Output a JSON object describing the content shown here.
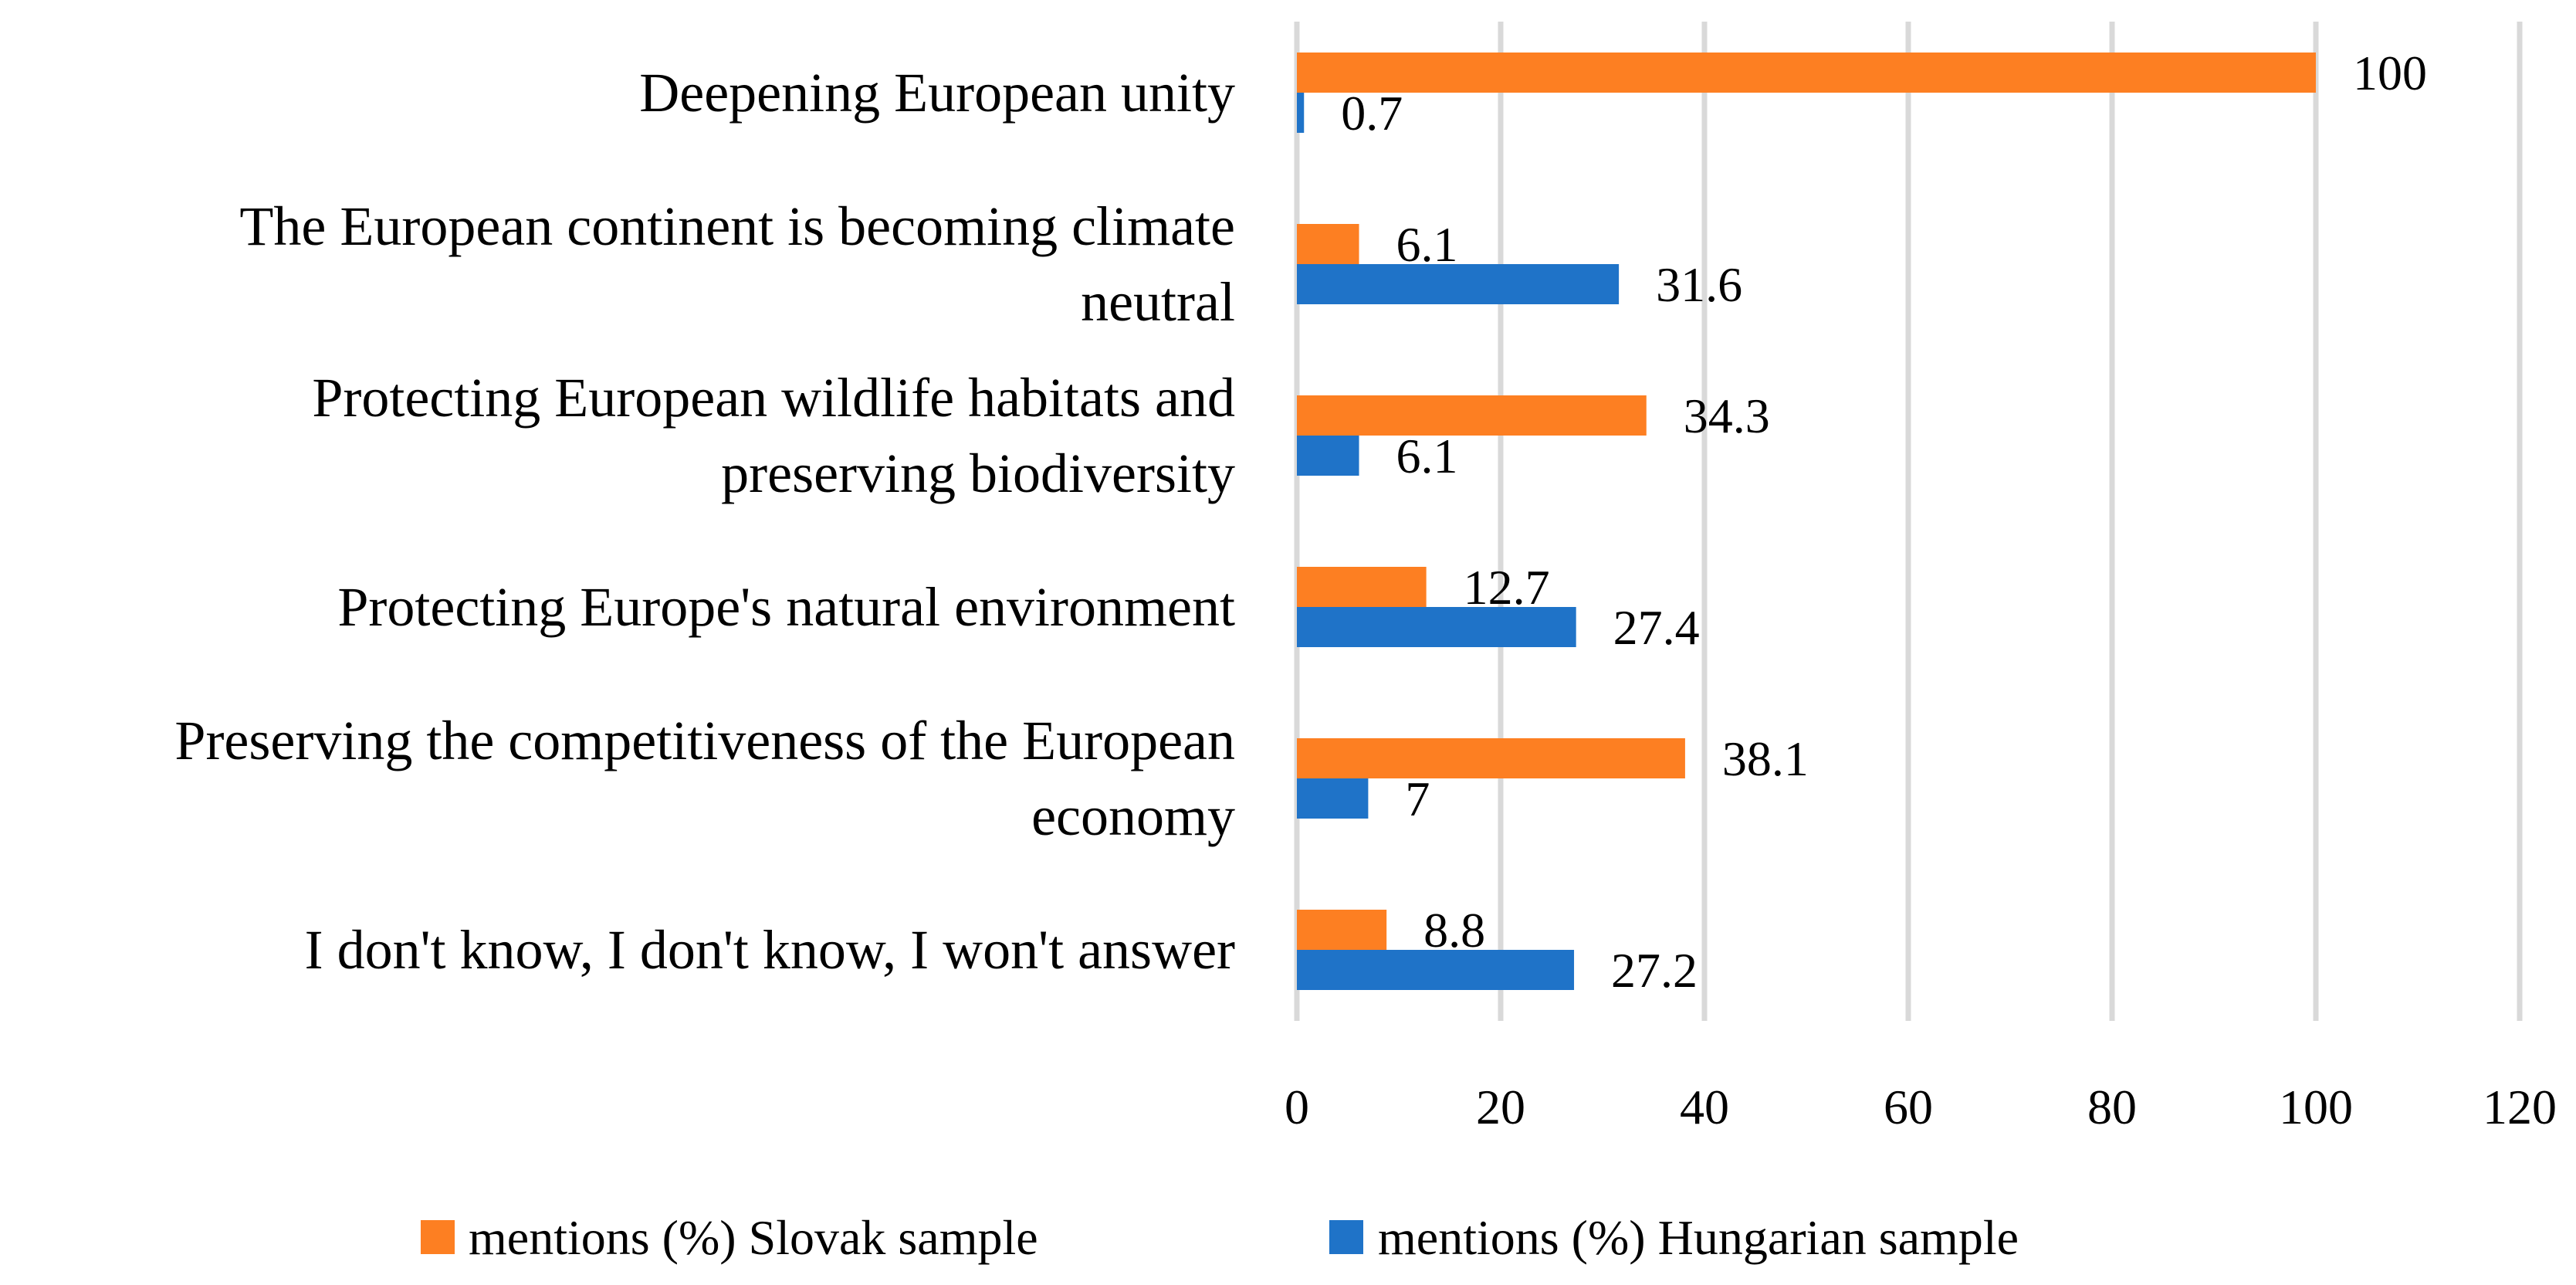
{
  "chart_data": {
    "type": "bar",
    "orientation": "horizontal",
    "title": "",
    "xlabel": "",
    "ylabel": "",
    "xlim": [
      0,
      120
    ],
    "xticks": [
      0,
      20,
      40,
      60,
      80,
      100,
      120
    ],
    "grid": true,
    "legend_position": "bottom",
    "categories": [
      "Deepening European unity",
      "The European continent is becoming climate neutral",
      "Protecting European wildlife habitats and preserving biodiversity",
      "Protecting Europe's natural environment",
      "Preserving the competitiveness of the European economy",
      "I don't know, I don't know, I won't answer"
    ],
    "category_lines": [
      [
        "Deepening European unity"
      ],
      [
        "The European continent is becoming climate",
        "neutral"
      ],
      [
        "Protecting European wildlife habitats and",
        "preserving biodiversity"
      ],
      [
        "Protecting Europe's natural environment"
      ],
      [
        "Preserving the competitiveness of the European",
        "economy"
      ],
      [
        "I don't know, I don't know, I won't answer"
      ]
    ],
    "series": [
      {
        "name": "mentions (%) Slovak sample",
        "color": "#fd7f22",
        "values": [
          100,
          6.1,
          34.3,
          12.7,
          38.1,
          8.8
        ],
        "labels": [
          "100",
          "6.1",
          "34.3",
          "12.7",
          "38.1",
          "8.8"
        ]
      },
      {
        "name": "mentions (%) Hungarian sample",
        "color": "#1f73c8",
        "values": [
          0.7,
          31.6,
          6.1,
          27.4,
          7,
          27.2
        ],
        "labels": [
          "0.7",
          "31.6",
          "6.1",
          "27.4",
          "7",
          "27.2"
        ]
      }
    ]
  }
}
